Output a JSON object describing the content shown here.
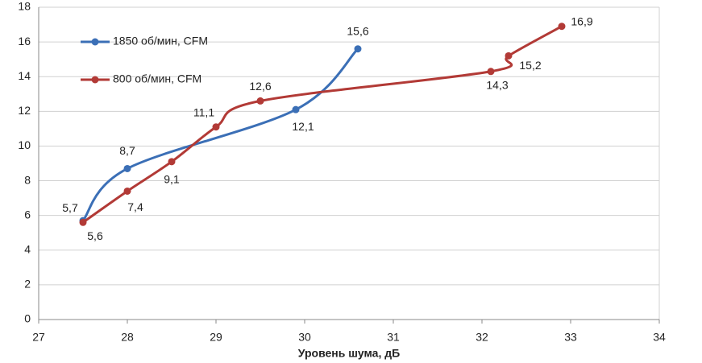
{
  "chart_data": {
    "type": "line",
    "smooth": true,
    "markers": true,
    "x_label": "Уровень шума, дБ",
    "xlim": [
      27,
      34
    ],
    "xticks": [
      27,
      28,
      29,
      30,
      31,
      32,
      33,
      34
    ],
    "ylim": [
      0,
      18
    ],
    "yticks": [
      0,
      2,
      4,
      6,
      8,
      10,
      12,
      14,
      16,
      18
    ],
    "grid": true,
    "legend": "upper left",
    "series": [
      {
        "name": "1850 об/мин, CFM",
        "color": "#3b6fb6",
        "x": [
          27.5,
          28,
          29.9,
          30.6
        ],
        "values": [
          5.7,
          8.7,
          12.1,
          15.6
        ],
        "value_labels": [
          "5,7",
          "8,7",
          "12,1",
          "15,6"
        ]
      },
      {
        "name": "800 об/мин, CFM",
        "color": "#b23a36",
        "x": [
          27.5,
          28,
          28.5,
          29,
          29.5,
          32.1,
          32.3,
          32.9
        ],
        "values": [
          5.6,
          7.4,
          9.1,
          11.1,
          12.6,
          14.3,
          15.2,
          16.9
        ],
        "value_labels": [
          "5,6",
          "7,4",
          "9,1",
          "11,1",
          "12,6",
          "14,3",
          "15,2",
          "16,9"
        ]
      }
    ]
  }
}
